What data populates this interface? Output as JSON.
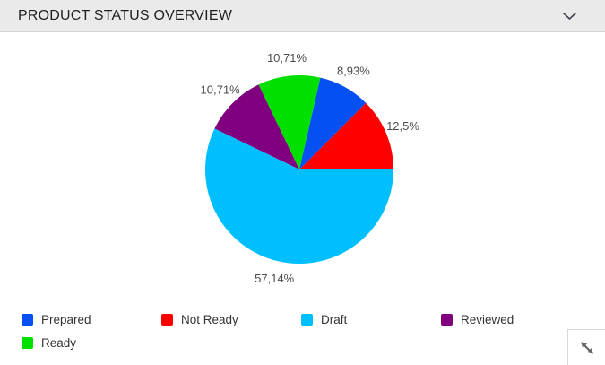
{
  "header": {
    "title": "PRODUCT STATUS OVERVIEW",
    "collapse_icon": "chevron-down"
  },
  "chart_data": {
    "type": "pie",
    "title": "PRODUCT STATUS OVERVIEW",
    "unit": "%",
    "decimal_separator": ",",
    "legend_position": "bottom",
    "slices": [
      {
        "label": "Prepared",
        "value": 8.93,
        "display": "8,93%",
        "color": "#0550f0"
      },
      {
        "label": "Not Ready",
        "value": 12.5,
        "display": "12,5%",
        "color": "#ff0000"
      },
      {
        "label": "Draft",
        "value": 57.14,
        "display": "57,14%",
        "color": "#00bfff"
      },
      {
        "label": "Reviewed",
        "value": 10.71,
        "display": "10,71%",
        "color": "#800080"
      },
      {
        "label": "Ready",
        "value": 10.71,
        "display": "10,71%",
        "color": "#00e000"
      }
    ],
    "legend_order": [
      "Prepared",
      "Not Ready",
      "Draft",
      "Reviewed",
      "Ready"
    ],
    "draw_order_ccw_from_east": [
      "Not Ready",
      "Prepared",
      "Ready",
      "Reviewed",
      "Draft"
    ]
  },
  "colors": {
    "header_bg": "#eaeaea",
    "header_border": "#d5d5d5",
    "label_text": "#4d4d4d",
    "legend_text": "#333333",
    "icon_gray": "#666666"
  },
  "resize_handle": {
    "icon": "resize-diagonal"
  }
}
